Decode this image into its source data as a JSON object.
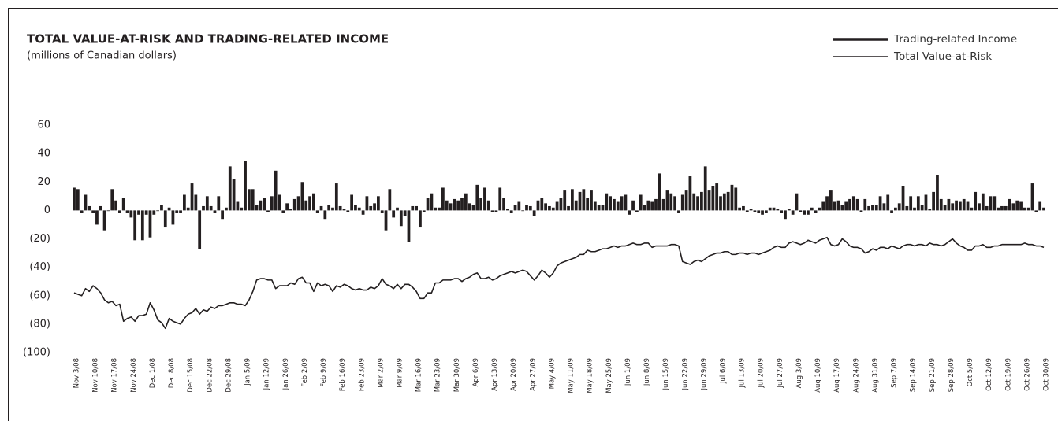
{
  "chart_data": {
    "type": "bar",
    "title": "TOTAL VALUE-AT-RISK AND TRADING-RELATED INCOME",
    "subtitle": "(millions of Canadian dollars)",
    "categories": [
      "Nov 3/08",
      null,
      null,
      null,
      null,
      "Nov 10/08",
      null,
      null,
      null,
      null,
      "Nov 17/08",
      null,
      null,
      null,
      null,
      "Nov 24/08",
      null,
      null,
      null,
      null,
      "Dec 1/08",
      null,
      null,
      null,
      null,
      "Dec 8/08",
      null,
      null,
      null,
      null,
      "Dec 15/08",
      null,
      null,
      null,
      null,
      "Dec 22/08",
      null,
      null,
      null,
      null,
      "Dec 29/08",
      null,
      null,
      null,
      null,
      "Jan 5/09",
      null,
      null,
      null,
      null,
      "Jan 12/09",
      null,
      null,
      null,
      null,
      "Jan 26/09",
      null,
      null,
      null,
      null,
      "Feb 2/09",
      null,
      null,
      null,
      null,
      "Feb 9/09",
      null,
      null,
      null,
      null,
      "Feb 16/09",
      null,
      null,
      null,
      null,
      "Feb 23/09",
      null,
      null,
      null,
      null,
      "Mar 2/09",
      null,
      null,
      null,
      null,
      "Mar 9/09",
      null,
      null,
      null,
      null,
      "Mar 16/09",
      null,
      null,
      null,
      null,
      "Mar 23/09",
      null,
      null,
      null,
      null,
      "Mar 30/09",
      null,
      null,
      null,
      null,
      "Apr 6/09",
      null,
      null,
      null,
      null,
      "Apr 13/09",
      null,
      null,
      null,
      null,
      "Apr 20/09",
      null,
      null,
      null,
      null,
      "Apr 27/09",
      null,
      null,
      null,
      null,
      "May 4/09",
      null,
      null,
      null,
      null,
      "May 11/09",
      null,
      null,
      null,
      null,
      "May 18/09",
      null,
      null,
      null,
      null,
      "May 25/09",
      null,
      null,
      null,
      null,
      "Jun 1/09",
      null,
      null,
      null,
      null,
      "Jun 8/09",
      null,
      null,
      null,
      null,
      "Jun 15/09",
      null,
      null,
      null,
      null,
      "Jun 22/09",
      null,
      null,
      null,
      null,
      "Jun 29/09",
      null,
      null,
      null,
      null,
      "Jul 6/09",
      null,
      null,
      null,
      null,
      "Jul 13/09",
      null,
      null,
      null,
      null,
      "Jul 20/09",
      null,
      null,
      null,
      null,
      "Jul 27/09",
      null,
      null,
      null,
      null,
      "Aug 3/09",
      null,
      null,
      null,
      null,
      "Aug 10/09",
      null,
      null,
      null,
      null,
      "Aug 17/09",
      null,
      null,
      null,
      null,
      "Aug 24/09",
      null,
      null,
      null,
      null,
      "Aug 31/09",
      null,
      null,
      null,
      null,
      "Sep 7/09",
      null,
      null,
      null,
      null,
      "Sep 14/09",
      null,
      null,
      null,
      null,
      "Sep 21/09",
      null,
      null,
      null,
      null,
      "Sep 28/09",
      null,
      null,
      null,
      null,
      "Oct 5/09",
      null,
      null,
      null,
      null,
      "Oct 12/09",
      null,
      null,
      null,
      null,
      "Oct 19/09",
      null,
      null,
      null,
      null,
      "Oct 26/09",
      null,
      null,
      null,
      null,
      "Oct 30/09"
    ],
    "series": [
      {
        "name": "Trading-related Income",
        "type": "bar",
        "color": "#231f20",
        "values": [
          16,
          15,
          -2,
          11,
          3,
          -2,
          -10,
          3,
          -14,
          0,
          15,
          7,
          -2,
          9,
          -2,
          -5,
          -21,
          -3,
          -21,
          -3,
          -19,
          -3,
          0,
          4,
          -12,
          2,
          -10,
          -2,
          -2,
          11,
          2,
          19,
          11,
          -27,
          3,
          10,
          3,
          -2,
          10,
          -6,
          2,
          31,
          22,
          6,
          2,
          35,
          15,
          15,
          4,
          7,
          9,
          -1,
          10,
          28,
          11,
          -2,
          5,
          1,
          8,
          10,
          20,
          7,
          10,
          12,
          -2,
          3,
          -6,
          4,
          2,
          19,
          3,
          1,
          -1,
          11,
          4,
          2,
          -3,
          10,
          3,
          5,
          10,
          -2,
          -14,
          15,
          -5,
          2,
          -11,
          -4,
          -22,
          3,
          3,
          -12,
          -1,
          9,
          12,
          2,
          2,
          16,
          7,
          5,
          8,
          7,
          9,
          12,
          5,
          4,
          18,
          9,
          16,
          7,
          -1,
          -1,
          16,
          9,
          1,
          -2,
          4,
          6,
          0,
          4,
          3,
          -4,
          7,
          9,
          5,
          3,
          2,
          6,
          9,
          14,
          3,
          15,
          7,
          13,
          15,
          9,
          14,
          6,
          4,
          4,
          12,
          10,
          8,
          6,
          10,
          11,
          -3,
          7,
          -1,
          11,
          4,
          7,
          6,
          8,
          26,
          8,
          14,
          12,
          10,
          -2,
          11,
          14,
          24,
          12,
          10,
          13,
          31,
          14,
          17,
          19,
          10,
          12,
          13,
          18,
          16,
          2,
          3,
          -1,
          1,
          -1,
          -2,
          -3,
          -2,
          2,
          2,
          1,
          -2,
          -6,
          1,
          -3,
          12,
          -1,
          -3,
          -3,
          2,
          -2,
          2,
          6,
          10,
          14,
          6,
          7,
          4,
          6,
          8,
          10,
          8,
          -1,
          8,
          3,
          4,
          4,
          10,
          5,
          11,
          -2,
          2,
          5,
          17,
          3,
          10,
          2,
          10,
          4,
          11,
          1,
          13,
          25,
          8,
          4,
          8,
          5,
          7,
          6,
          8,
          6,
          2,
          13,
          5,
          12,
          3,
          10,
          10,
          2,
          3,
          3,
          8,
          5,
          7,
          6,
          2,
          2,
          19,
          -1,
          6,
          2
        ]
      },
      {
        "name": "Total Value-at-Risk",
        "type": "line",
        "color": "#231f20",
        "values": [
          -58,
          -59,
          -60,
          -55,
          -57,
          -53,
          -55,
          -58,
          -63,
          -65,
          -64,
          -67,
          -66,
          -78,
          -76,
          -75,
          -78,
          -74,
          -74,
          -73,
          -65,
          -70,
          -77,
          -79,
          -83,
          -76,
          -78,
          -79,
          -80,
          -76,
          -73,
          -72,
          -69,
          -73,
          -70,
          -71,
          -68,
          -69,
          -67,
          -67,
          -66,
          -65,
          -65,
          -66,
          -66,
          -67,
          -63,
          -57,
          -49,
          -48,
          -48,
          -49,
          -49,
          -55,
          -53,
          -53,
          -53,
          -51,
          -52,
          -48,
          -47,
          -51,
          -51,
          -57,
          -51,
          -53,
          -52,
          -53,
          -57,
          -53,
          -54,
          -52,
          -53,
          -55,
          -56,
          -55,
          -56,
          -56,
          -54,
          -55,
          -53,
          -48,
          -52,
          -53,
          -55,
          -52,
          -55,
          -52,
          -52,
          -54,
          -57,
          -62,
          -62,
          -58,
          -58,
          -51,
          -51,
          -49,
          -49,
          -49,
          -48,
          -48,
          -50,
          -48,
          -47,
          -45,
          -44,
          -48,
          -48,
          -47,
          -49,
          -48,
          -46,
          -45,
          -44,
          -43,
          -44,
          -43,
          -42,
          -43,
          -46,
          -49,
          -46,
          -42,
          -44,
          -47,
          -44,
          -39,
          -37,
          -36,
          -35,
          -34,
          -33,
          -31,
          -31,
          -28,
          -29,
          -29,
          -28,
          -27,
          -27,
          -26,
          -25,
          -26,
          -25,
          -25,
          -24,
          -23,
          -24,
          -24,
          -23,
          -23,
          -26,
          -25,
          -25,
          -25,
          -25,
          -24,
          -24,
          -25,
          -36,
          -37,
          -38,
          -36,
          -35,
          -36,
          -34,
          -32,
          -31,
          -30,
          -30,
          -29,
          -29,
          -31,
          -31,
          -30,
          -30,
          -31,
          -30,
          -30,
          -31,
          -30,
          -29,
          -28,
          -26,
          -25,
          -26,
          -26,
          -23,
          -22,
          -23,
          -24,
          -23,
          -21,
          -22,
          -23,
          -21,
          -20,
          -19,
          -24,
          -25,
          -24,
          -20,
          -22,
          -25,
          -26,
          -26,
          -27,
          -30,
          -29,
          -27,
          -28,
          -26,
          -26,
          -27,
          -25,
          -26,
          -27,
          -25,
          -24,
          -24,
          -25,
          -24,
          -24,
          -25,
          -23,
          -24,
          -24,
          -25,
          -24,
          -22,
          -20,
          -23,
          -25,
          -26,
          -28,
          -28,
          -25,
          -25,
          -24,
          -26,
          -26,
          -25,
          -25,
          -24,
          -24,
          -24,
          -24,
          -24,
          -24,
          -23,
          -24,
          -24,
          -25,
          -25,
          -26
        ]
      }
    ],
    "ylim": [
      -100,
      60
    ],
    "yticks": [
      60,
      40,
      20,
      0,
      {
        "value": -20,
        "label": "(20)"
      },
      {
        "value": -40,
        "label": "(40)"
      },
      {
        "value": -60,
        "label": "(60)"
      },
      {
        "value": -80,
        "label": "(80)"
      },
      {
        "value": -100,
        "label": "(100)"
      }
    ],
    "legend": "top-right"
  }
}
